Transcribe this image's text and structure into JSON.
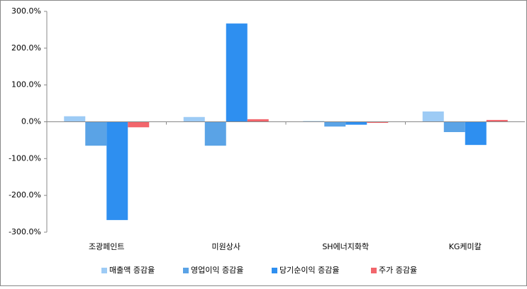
{
  "chart_data": {
    "type": "bar",
    "categories": [
      "조광페인트",
      "미원상사",
      "SH에너지화학",
      "KG케미칼"
    ],
    "series": [
      {
        "name": "매출액 증감율",
        "color": "#9dcbf5",
        "values": [
          15,
          13,
          2,
          28
        ]
      },
      {
        "name": "영업이익 증감율",
        "color": "#5aa3e6",
        "values": [
          -65,
          -65,
          -13,
          -28
        ]
      },
      {
        "name": "당기순이익 증감율",
        "color": "#2e8ff0",
        "values": [
          -267,
          267,
          -8,
          -63
        ]
      },
      {
        "name": "주가 증감율",
        "color": "#f2666c",
        "values": [
          -15,
          7,
          -3,
          5
        ]
      }
    ],
    "ylim": [
      -300,
      300
    ],
    "yticks": [
      {
        "value": -300,
        "label": "-300.0%"
      },
      {
        "value": -200,
        "label": "-200.0%"
      },
      {
        "value": -100,
        "label": "-100.0%"
      },
      {
        "value": 0,
        "label": "0.0%"
      },
      {
        "value": 100,
        "label": "100.0%"
      },
      {
        "value": 200,
        "label": "200.0%"
      },
      {
        "value": 300,
        "label": "300.0%"
      }
    ],
    "grid": false
  }
}
